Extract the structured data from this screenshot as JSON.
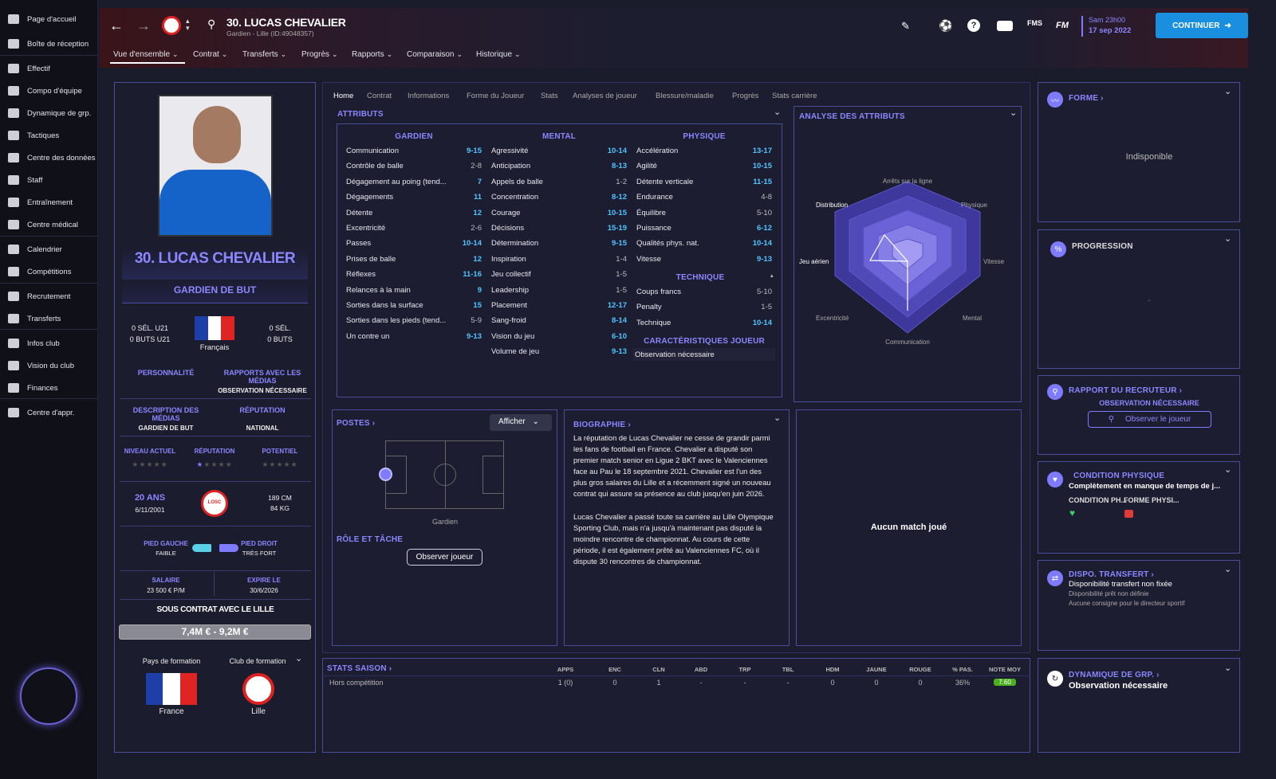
{
  "sidebar": {
    "items": [
      "Page d'accueil",
      "Boîte de réception",
      "Effectif",
      "Compo d'équipe",
      "Dynamique de grp.",
      "Tactiques",
      "Centre des données",
      "Staff",
      "Entraînement",
      "Centre médical",
      "Calendrier",
      "Compétitions",
      "Recrutement",
      "Transferts",
      "Infos club",
      "Vision du club",
      "Finances",
      "Centre d'appr."
    ]
  },
  "header": {
    "title": "30. LUCAS CHEVALIER",
    "subtitle": "Gardien - Lille (ID:49048357)",
    "date_time": "Sam 23h00",
    "date": "17 sep 2022",
    "continue": "CONTINUER",
    "fm_label": "FM"
  },
  "menu": [
    "Vue d'ensemble",
    "Contrat",
    "Transferts",
    "Progrès",
    "Rapports",
    "Comparaison",
    "Historique"
  ],
  "tabs": [
    "Home",
    "Contrat",
    "Informations",
    "Forme du Joueur",
    "Stats",
    "Analyses de joueur",
    "Blessure/maladie",
    "Progrès",
    "Stats carrière"
  ],
  "profile": {
    "name": "30. LUCAS CHEVALIER",
    "position": "GARDIEN DE BUT",
    "sel_left": "0 SÉL. U21",
    "buts_left": "0 BUTS U21",
    "nationality": "Français",
    "sel_right": "0 SÉL.",
    "buts_right": "0 BUTS",
    "personnalite": "PERSONNALITÉ",
    "rapports": "RAPPORTS AVEC LES MÉDIAS",
    "obs": "OBSERVATION NÉCESSAIRE",
    "desc_medias": "DESCRIPTION DES MÉDIAS",
    "reputation_h": "RÉPUTATION",
    "desc_val": "GARDIEN DE BUT",
    "rep_val": "NATIONAL",
    "niveau": "NIVEAU ACTUEL",
    "reputation2": "RÉPUTATION",
    "potentiel": "POTENTIEL",
    "age": "20 ANS",
    "dob": "6/11/2001",
    "height": "189 CM",
    "weight": "84 KG",
    "pied_g": "PIED GAUCHE",
    "pied_g_v": "FAIBLE",
    "pied_d": "PIED DROIT",
    "pied_d_v": "TRÈS FORT",
    "salaire_h": "SALAIRE",
    "salaire": "23 500 € P/M",
    "expire_h": "EXPIRE LE",
    "expire": "30/6/2026",
    "contrat": "SOUS CONTRAT AVEC LE LILLE",
    "valeur": "7,4M € - 9,2M €",
    "pays_formation": "Pays de formation",
    "club_formation": "Club de formation",
    "pays": "France",
    "club": "Lille",
    "club_logo": "LOSC"
  },
  "attributes": {
    "title": "ATTRIBUTS",
    "gardien_h": "GARDIEN",
    "mental_h": "MENTAL",
    "physique_h": "PHYSIQUE",
    "technique_h": "TECHNIQUE",
    "carac_h": "CARACTÉRISTIQUES JOUEUR",
    "carac_v": "Observation nécessaire",
    "gardien": [
      [
        "Communication",
        "9-15",
        1
      ],
      [
        "Contrôle de balle",
        "2-8",
        0
      ],
      [
        "Dégagement au poing (tend...",
        "7",
        1
      ],
      [
        "Dégagements",
        "11",
        1
      ],
      [
        "Détente",
        "12",
        1
      ],
      [
        "Excentricité",
        "2-6",
        0
      ],
      [
        "Passes",
        "10-14",
        1
      ],
      [
        "Prises de balle",
        "12",
        1
      ],
      [
        "Réflexes",
        "11-16",
        1
      ],
      [
        "Relances à la main",
        "9",
        1
      ],
      [
        "Sorties dans la surface",
        "15",
        1
      ],
      [
        "Sorties dans les pieds (tend...",
        "5-9",
        0
      ],
      [
        "Un contre un",
        "9-13",
        1
      ]
    ],
    "mental": [
      [
        "Agressivité",
        "10-14",
        1
      ],
      [
        "Anticipation",
        "8-13",
        1
      ],
      [
        "Appels de balle",
        "1-2",
        0
      ],
      [
        "Concentration",
        "8-12",
        1
      ],
      [
        "Courage",
        "10-15",
        1
      ],
      [
        "Décisions",
        "15-19",
        1
      ],
      [
        "Détermination",
        "9-15",
        1
      ],
      [
        "Inspiration",
        "1-4",
        0
      ],
      [
        "Jeu collectif",
        "1-5",
        0
      ],
      [
        "Leadership",
        "1-5",
        0
      ],
      [
        "Placement",
        "12-17",
        1
      ],
      [
        "Sang-froid",
        "8-14",
        1
      ],
      [
        "Vision du jeu",
        "6-10",
        1
      ],
      [
        "Volume de jeu",
        "9-13",
        1
      ]
    ],
    "physique": [
      [
        "Accélération",
        "13-17",
        1
      ],
      [
        "Agilité",
        "10-15",
        1
      ],
      [
        "Détente verticale",
        "11-15",
        1
      ],
      [
        "Endurance",
        "4-8",
        0
      ],
      [
        "Équilibre",
        "5-10",
        0
      ],
      [
        "Puissance",
        "6-12",
        1
      ],
      [
        "Qualités phys. nat.",
        "10-14",
        1
      ],
      [
        "Vitesse",
        "9-13",
        1
      ]
    ],
    "technique": [
      [
        "Coups francs",
        "5-10",
        0
      ],
      [
        "Penalty",
        "1-5",
        0
      ],
      [
        "Technique",
        "10-14",
        1
      ]
    ]
  },
  "analyse": {
    "title": "ANALYSE DES ATTRIBUTS",
    "labels": [
      "Arrêts sur la ligne",
      "Physique",
      "Vitesse",
      "Mental",
      "Communication",
      "Excentricité",
      "Jeu aérien",
      "Distribution"
    ]
  },
  "postes": {
    "title": "POSTES",
    "afficher": "Afficher",
    "gardien": "Gardien",
    "role": "RÔLE ET TÂCHE",
    "observer": "Observer joueur"
  },
  "bio": {
    "title": "BIOGRAPHIE",
    "p1": "La réputation de Lucas Chevalier ne cesse de grandir parmi les fans de football en France. Chevalier a disputé son premier match senior en Ligue 2 BKT avec le Valenciennes face au Pau le 18 septembre 2021. Chevalier est l'un des plus gros salaires du Lille et a récemment signé un nouveau contrat qui assure sa présence au club jusqu'en juin 2026.",
    "p2": "Lucas Chevalier a passé toute sa carrière au Lille Olympique Sporting Club, mais n'a jusqu'à maintenant pas disputé la moindre rencontre de championnat. Au cours de cette période, il est également prêté au Valenciennes FC, où il dispute 30 rencontres de championnat."
  },
  "aucun": "Aucun match joué",
  "stats": {
    "title": "STATS SAISON",
    "headers": [
      "APPS",
      "ENC",
      "CLN",
      "ABD",
      "TRP",
      "TBL",
      "HDM",
      "JAUNE",
      "ROUGE",
      "% PAS.",
      "NOTE MOY"
    ],
    "row_label": "Hors compétition",
    "values": [
      "1 (0)",
      "0",
      "1",
      "-",
      "-",
      "-",
      "0",
      "0",
      "0",
      "36%",
      "7.60"
    ]
  },
  "right": {
    "forme": "FORME",
    "indispo": "Indisponible",
    "progression": "PROGRESSION",
    "prog_val": "-",
    "rapport": "RAPPORT DU RECRUTEUR",
    "rapport_obs": "OBSERVATION NÉCESSAIRE",
    "observer": "Observer le joueur",
    "condition": "CONDITION PHYSIQUE",
    "condition_v": "Complètement en manque de temps de j...",
    "cond_a": "CONDITION PH...",
    "cond_b": "FORME PHYSI...",
    "dispo": "DISPO. TRANSFERT",
    "dispo_1": "Disponibilité transfert non fixée",
    "dispo_2": "Disponibilité prêt non définie",
    "dispo_3": "Aucune consigne pour le directeur sportif",
    "dyna": "DYNAMIQUE DE GRP.",
    "dyna_v": "Observation nécessaire"
  },
  "colors": {
    "accent": "#8c86ff",
    "value": "#4fc4ff",
    "continue": "#1a8fe0",
    "panel_border": "#4a4d9a"
  }
}
